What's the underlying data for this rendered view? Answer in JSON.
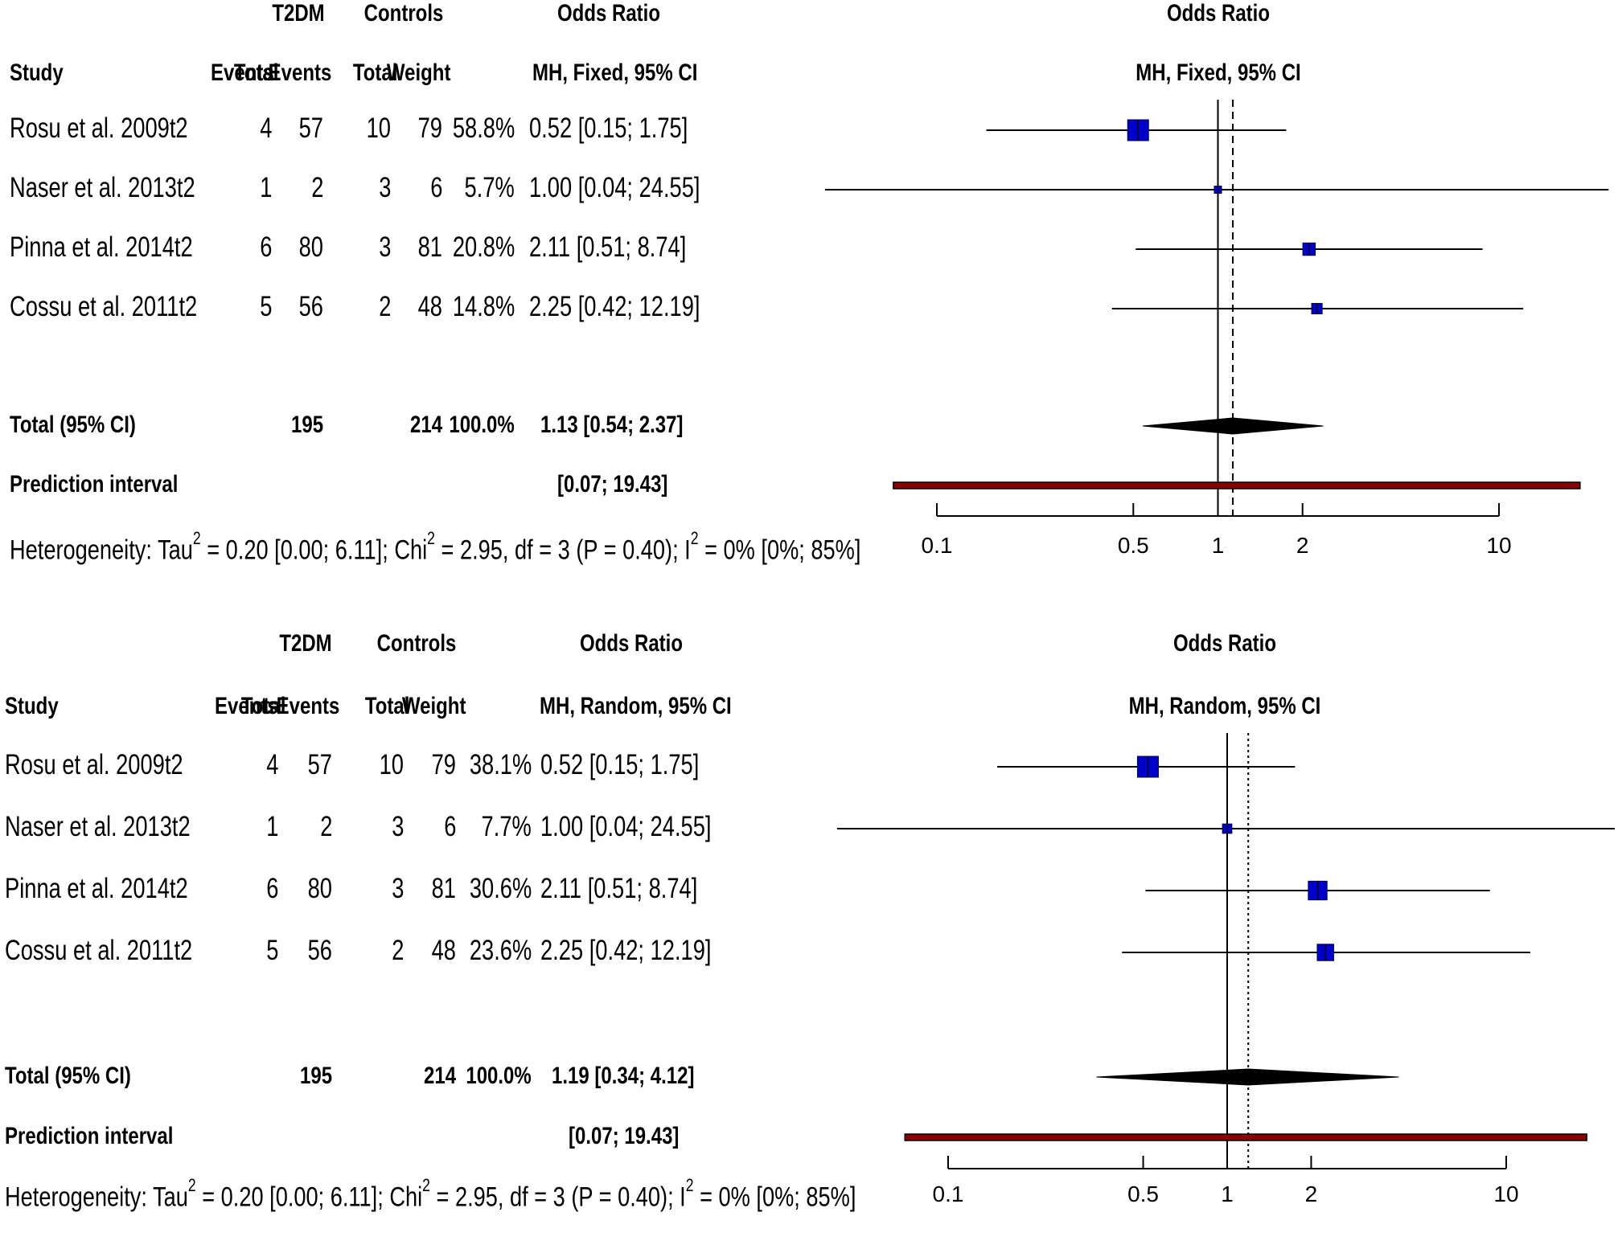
{
  "chart_data": [
    {
      "type": "forest",
      "model_header": "MH, Fixed, 95% CI",
      "headers": {
        "group1": "T2DM",
        "group2": "Controls",
        "or_top": "Odds Ratio",
        "study": "Study",
        "events1": "Events",
        "total1": "Total",
        "events2": "Events",
        "total2": "Total",
        "weight": "Weight",
        "ci": "MH, Fixed, 95% CI",
        "plot_top": "Odds Ratio"
      },
      "studies": [
        {
          "name": "Rosu et al. 2009t2",
          "events1": "4",
          "total1": "57",
          "events2": "10",
          "total2": "79",
          "weight": "58.8%",
          "ci_text": "0.52 [0.15;  1.75]",
          "or": 0.52,
          "lower": 0.15,
          "upper": 1.75,
          "weight_pct": 58.8
        },
        {
          "name": "Naser et al. 2013t2",
          "events1": "1",
          "total1": "2",
          "events2": "3",
          "total2": "6",
          "weight": "5.7%",
          "ci_text": "1.00 [0.04; 24.55]",
          "or": 1.0,
          "lower": 0.04,
          "upper": 24.55,
          "weight_pct": 5.7
        },
        {
          "name": "Pinna et al. 2014t2",
          "events1": "6",
          "total1": "80",
          "events2": "3",
          "total2": "81",
          "weight": "20.8%",
          "ci_text": "2.11 [0.51;  8.74]",
          "or": 2.11,
          "lower": 0.51,
          "upper": 8.74,
          "weight_pct": 20.8
        },
        {
          "name": "Cossu et al. 2011t2",
          "events1": "5",
          "total1": "56",
          "events2": "2",
          "total2": "48",
          "weight": "14.8%",
          "ci_text": "2.25 [0.42; 12.19]",
          "or": 2.25,
          "lower": 0.42,
          "upper": 12.19,
          "weight_pct": 14.8
        }
      ],
      "total": {
        "label": "Total (95% CI)",
        "total1": "195",
        "total2": "214",
        "weight": "100.0%",
        "ci_text": "1.13 [0.54;  2.37]",
        "or": 1.13,
        "lower": 0.54,
        "upper": 2.37
      },
      "prediction": {
        "label": "Prediction interval",
        "ci_text": "[0.07; 19.43]",
        "lower": 0.07,
        "upper": 19.43
      },
      "heterogeneity": {
        "prefix": "Heterogeneity: Tau",
        "sup1": "2",
        "mid1": " = 0.20 [0.00; 6.11]; Chi",
        "sup2": "2",
        "mid2": " = 2.95, df = 3 (P = 0.40); I",
        "sup3": "2",
        "end": " = 0% [0%; 85%]"
      },
      "x_axis": {
        "scale": "log",
        "ticks": [
          0.1,
          0.5,
          1,
          2,
          10
        ],
        "tick_labels": [
          "0.1",
          "0.5",
          "1",
          "2",
          "10"
        ],
        "reference_line": 1,
        "pooled_line_style": "dashed"
      },
      "colors": {
        "square": "#0000cc",
        "prediction": "#8b0000",
        "diamond": "#000000"
      }
    },
    {
      "type": "forest",
      "model_header": "MH, Random, 95% CI",
      "headers": {
        "group1": "T2DM",
        "group2": "Controls",
        "or_top": "Odds Ratio",
        "study": "Study",
        "events1": "Events",
        "total1": "Total",
        "events2": "Events",
        "total2": "Total",
        "weight": "Weight",
        "ci": "MH, Random, 95% CI",
        "plot_top": "Odds Ratio"
      },
      "studies": [
        {
          "name": "Rosu et al. 2009t2",
          "events1": "4",
          "total1": "57",
          "events2": "10",
          "total2": "79",
          "weight": "38.1%",
          "ci_text": "0.52 [0.15;  1.75]",
          "or": 0.52,
          "lower": 0.15,
          "upper": 1.75,
          "weight_pct": 38.1
        },
        {
          "name": "Naser et al. 2013t2",
          "events1": "1",
          "total1": "2",
          "events2": "3",
          "total2": "6",
          "weight": "7.7%",
          "ci_text": "1.00 [0.04; 24.55]",
          "or": 1.0,
          "lower": 0.04,
          "upper": 24.55,
          "weight_pct": 7.7
        },
        {
          "name": "Pinna et al. 2014t2",
          "events1": "6",
          "total1": "80",
          "events2": "3",
          "total2": "81",
          "weight": "30.6%",
          "ci_text": "2.11 [0.51;  8.74]",
          "or": 2.11,
          "lower": 0.51,
          "upper": 8.74,
          "weight_pct": 30.6
        },
        {
          "name": "Cossu et al. 2011t2",
          "events1": "5",
          "total1": "56",
          "events2": "2",
          "total2": "48",
          "weight": "23.6%",
          "ci_text": "2.25 [0.42; 12.19]",
          "or": 2.25,
          "lower": 0.42,
          "upper": 12.19,
          "weight_pct": 23.6
        }
      ],
      "total": {
        "label": "Total (95% CI)",
        "total1": "195",
        "total2": "214",
        "weight": "100.0%",
        "ci_text": "1.19 [0.34;  4.12]",
        "or": 1.19,
        "lower": 0.34,
        "upper": 4.12
      },
      "prediction": {
        "label": "Prediction interval",
        "ci_text": "[0.07; 19.43]",
        "lower": 0.07,
        "upper": 19.43
      },
      "heterogeneity": {
        "prefix": "Heterogeneity: Tau",
        "sup1": "2",
        "mid1": " = 0.20 [0.00; 6.11]; Chi",
        "sup2": "2",
        "mid2": " = 2.95, df = 3 (P = 0.40); I",
        "sup3": "2",
        "end": " = 0% [0%; 85%]"
      },
      "x_axis": {
        "scale": "log",
        "ticks": [
          0.1,
          0.5,
          1,
          2,
          10
        ],
        "tick_labels": [
          "0.1",
          "0.5",
          "1",
          "2",
          "10"
        ],
        "reference_line": 1,
        "pooled_line_style": "dotted"
      },
      "colors": {
        "square": "#0000cc",
        "prediction": "#8b0000",
        "diamond": "#000000"
      }
    }
  ]
}
